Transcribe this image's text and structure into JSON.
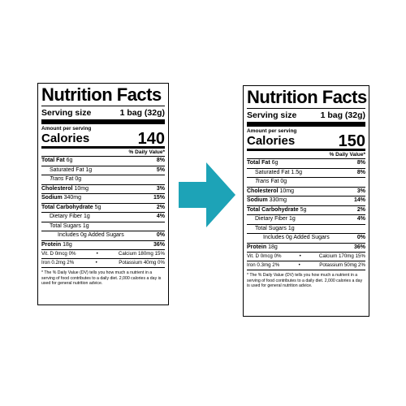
{
  "colors": {
    "arrow": "#1da3b7",
    "ink": "#000000",
    "background": "#ffffff"
  },
  "icons": {
    "arrow": "right-arrow-icon"
  },
  "left_label": {
    "title": "Nutrition Facts",
    "serving_size_label": "Serving size",
    "serving_size_value": "1 bag (32g)",
    "amount_per_serving": "Amount per serving",
    "calories_label": "Calories",
    "calories_value": "140",
    "dv_header": "% Daily Value*",
    "total_fat_label": "Total Fat",
    "total_fat_amount": "6g",
    "total_fat_pct": "8%",
    "sat_fat_label": "Saturated Fat 1g",
    "sat_fat_pct": "5%",
    "trans_fat_italic": "Trans",
    "trans_fat_rest": "Fat 0g",
    "cholesterol_label": "Cholesterol",
    "cholesterol_amount": "10mg",
    "cholesterol_pct": "3%",
    "sodium_label": "Sodium",
    "sodium_amount": "340mg",
    "sodium_pct": "15%",
    "carb_label": "Total Carbohydrate",
    "carb_amount": "5g",
    "carb_pct": "2%",
    "fiber_label": "Dietary Fiber 1g",
    "fiber_pct": "4%",
    "sugars_label": "Total Sugars 1g",
    "added_sugars_label": "Includes 0g Added Sugars",
    "added_sugars_pct": "0%",
    "protein_label": "Protein",
    "protein_amount": "18g",
    "protein_pct": "36%",
    "vitd": "Vit. D 0mcg 0%",
    "calcium": "Calcium 180mg 15%",
    "iron": "Iron 0.2mg 2%",
    "potassium": "Potassium 40mg 0%",
    "footnote": "* The % Daily Value (DV) tells you how much a nutrient in a serving of food contributes to a daily diet. 2,000 calories a day is used for general nutrition advice."
  },
  "right_label": {
    "title": "Nutrition Facts",
    "serving_size_label": "Serving size",
    "serving_size_value": "1 bag (32g)",
    "amount_per_serving": "Amount per serving",
    "calories_label": "Calories",
    "calories_value": "150",
    "dv_header": "% Daily Value*",
    "total_fat_label": "Total Fat",
    "total_fat_amount": "6g",
    "total_fat_pct": "8%",
    "sat_fat_label": "Saturated Fat 1.5g",
    "sat_fat_pct": "8%",
    "trans_fat_italic": "Trans",
    "trans_fat_rest": "Fat 0g",
    "cholesterol_label": "Cholesterol",
    "cholesterol_amount": "10mg",
    "cholesterol_pct": "3%",
    "sodium_label": "Sodium",
    "sodium_amount": "330mg",
    "sodium_pct": "14%",
    "carb_label": "Total Carbohydrate",
    "carb_amount": "5g",
    "carb_pct": "2%",
    "fiber_label": "Dietary Fiber 1g",
    "fiber_pct": "4%",
    "sugars_label": "Total Sugars 1g",
    "added_sugars_label": "Includes 0g Added Sugars",
    "added_sugars_pct": "0%",
    "protein_label": "Protein",
    "protein_amount": "18g",
    "protein_pct": "36%",
    "vitd": "Vit. D 0mcg 0%",
    "calcium": "Calcium 170mg 15%",
    "iron": "Iron 0.3mg 2%",
    "potassium": "Potassium 50mg 2%",
    "footnote": "* The % Daily Value (DV) tells you how much a nutrient in a serving of food contributes to a daily diet. 2,000 calories a day is used for general nutrition advice."
  }
}
